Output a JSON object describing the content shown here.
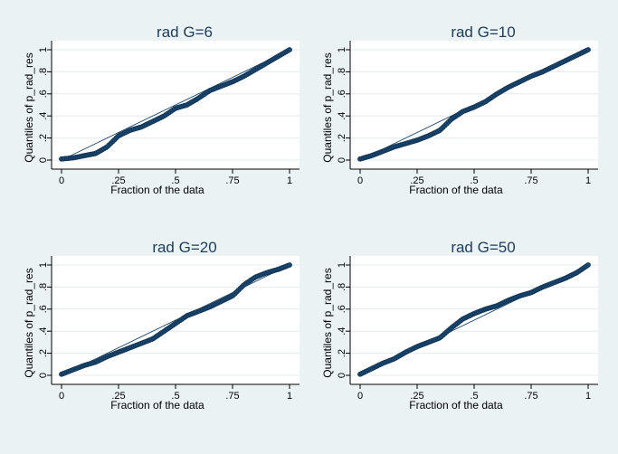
{
  "colors": {
    "background": "#eaf2f3",
    "plot_area": "#ffffff",
    "markers": "#1a476f",
    "reference_line": "#1a476f",
    "grid": "#e5ecee",
    "text": "#000000",
    "title_text": "#1f3c5a"
  },
  "chart_data": [
    {
      "type": "scatter",
      "title": "rad G=6",
      "xlabel": "Fraction of the data",
      "ylabel": "Quantiles of p_rad_res",
      "xlim": [
        0,
        1
      ],
      "ylim": [
        0,
        1
      ],
      "xticks": [
        0,
        0.25,
        0.5,
        0.75,
        1
      ],
      "xtick_labels": [
        "0",
        ".25",
        ".5",
        ".75",
        "1"
      ],
      "yticks": [
        0,
        0.2,
        0.4,
        0.6,
        0.8,
        1
      ],
      "ytick_labels": [
        "0",
        ".2",
        ".4",
        ".6",
        ".8",
        "1"
      ],
      "grid": true,
      "reference_line": [
        [
          0,
          0
        ],
        [
          1,
          1
        ]
      ],
      "x": [
        0,
        0.05,
        0.1,
        0.15,
        0.2,
        0.25,
        0.3,
        0.35,
        0.4,
        0.45,
        0.5,
        0.55,
        0.6,
        0.65,
        0.7,
        0.75,
        0.8,
        0.85,
        0.9,
        0.95,
        1
      ],
      "y": [
        0.01,
        0.02,
        0.04,
        0.06,
        0.12,
        0.22,
        0.27,
        0.3,
        0.35,
        0.4,
        0.47,
        0.5,
        0.56,
        0.63,
        0.67,
        0.71,
        0.76,
        0.82,
        0.88,
        0.94,
        1.0
      ]
    },
    {
      "type": "scatter",
      "title": "rad G=10",
      "xlabel": "Fraction of the data",
      "ylabel": "Quantiles of p_rad_res",
      "xlim": [
        0,
        1
      ],
      "ylim": [
        0,
        1
      ],
      "xticks": [
        0,
        0.25,
        0.5,
        0.75,
        1
      ],
      "xtick_labels": [
        "0",
        ".25",
        ".5",
        ".75",
        "1"
      ],
      "yticks": [
        0,
        0.2,
        0.4,
        0.6,
        0.8,
        1
      ],
      "ytick_labels": [
        "0",
        ".2",
        ".4",
        ".6",
        ".8",
        "1"
      ],
      "grid": true,
      "reference_line": [
        [
          0,
          0
        ],
        [
          1,
          1
        ]
      ],
      "x": [
        0,
        0.05,
        0.1,
        0.15,
        0.2,
        0.25,
        0.3,
        0.35,
        0.4,
        0.45,
        0.5,
        0.55,
        0.6,
        0.65,
        0.7,
        0.75,
        0.8,
        0.85,
        0.9,
        0.95,
        1
      ],
      "y": [
        0.01,
        0.04,
        0.08,
        0.12,
        0.15,
        0.18,
        0.22,
        0.27,
        0.37,
        0.44,
        0.48,
        0.53,
        0.6,
        0.66,
        0.71,
        0.76,
        0.8,
        0.85,
        0.9,
        0.95,
        1.0
      ]
    },
    {
      "type": "scatter",
      "title": "rad G=20",
      "xlabel": "Fraction of the data",
      "ylabel": "Quantiles of p_rad_res",
      "xlim": [
        0,
        1
      ],
      "ylim": [
        0,
        1
      ],
      "xticks": [
        0,
        0.25,
        0.5,
        0.75,
        1
      ],
      "xtick_labels": [
        "0",
        ".25",
        ".5",
        ".75",
        "1"
      ],
      "yticks": [
        0,
        0.2,
        0.4,
        0.6,
        0.8,
        1
      ],
      "ytick_labels": [
        "0",
        ".2",
        ".4",
        ".6",
        ".8",
        "1"
      ],
      "grid": true,
      "reference_line": [
        [
          0,
          0
        ],
        [
          1,
          1
        ]
      ],
      "x": [
        0,
        0.05,
        0.1,
        0.15,
        0.2,
        0.25,
        0.3,
        0.35,
        0.4,
        0.45,
        0.5,
        0.55,
        0.6,
        0.65,
        0.7,
        0.75,
        0.8,
        0.85,
        0.9,
        0.95,
        1
      ],
      "y": [
        0.01,
        0.05,
        0.09,
        0.12,
        0.17,
        0.21,
        0.25,
        0.29,
        0.33,
        0.4,
        0.47,
        0.54,
        0.58,
        0.62,
        0.67,
        0.72,
        0.82,
        0.89,
        0.93,
        0.96,
        1.0
      ]
    },
    {
      "type": "scatter",
      "title": "rad G=50",
      "xlabel": "Fraction of the data",
      "ylabel": "Quantiles of p_rad_res",
      "xlim": [
        0,
        1
      ],
      "ylim": [
        0,
        1
      ],
      "xticks": [
        0,
        0.25,
        0.5,
        0.75,
        1
      ],
      "xtick_labels": [
        "0",
        ".25",
        ".5",
        ".75",
        "1"
      ],
      "yticks": [
        0,
        0.2,
        0.4,
        0.6,
        0.8,
        1
      ],
      "ytick_labels": [
        "0",
        ".2",
        ".4",
        ".6",
        ".8",
        "1"
      ],
      "grid": true,
      "reference_line": [
        [
          0,
          0
        ],
        [
          1,
          1
        ]
      ],
      "x": [
        0,
        0.05,
        0.1,
        0.15,
        0.2,
        0.25,
        0.3,
        0.35,
        0.4,
        0.45,
        0.5,
        0.55,
        0.6,
        0.65,
        0.7,
        0.75,
        0.8,
        0.85,
        0.9,
        0.95,
        1
      ],
      "y": [
        0.01,
        0.06,
        0.11,
        0.15,
        0.21,
        0.26,
        0.3,
        0.34,
        0.43,
        0.51,
        0.56,
        0.6,
        0.63,
        0.68,
        0.72,
        0.75,
        0.8,
        0.84,
        0.88,
        0.93,
        1.0
      ]
    }
  ]
}
